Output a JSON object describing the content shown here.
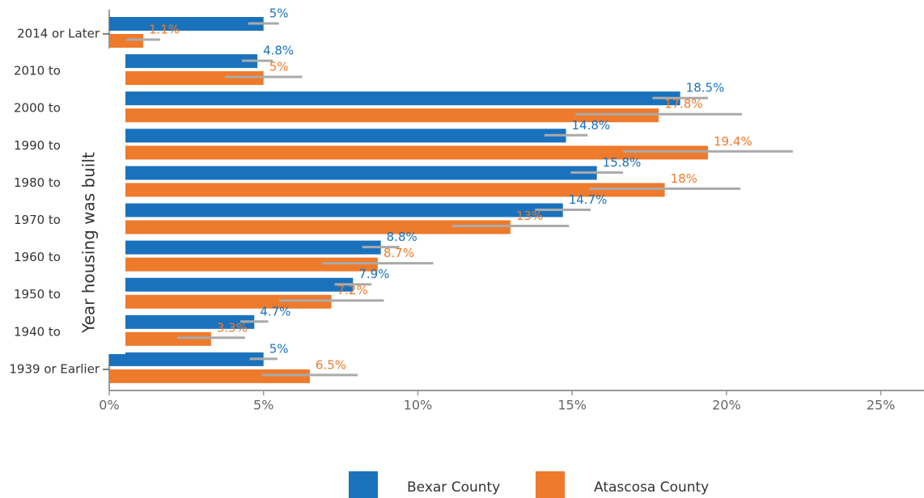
{
  "chart_data": {
    "type": "bar",
    "orientation": "horizontal",
    "y_axis_label": "Year housing was built",
    "categories": [
      "2014 or Later",
      "2010 to",
      "2000 to",
      "1990 to",
      "1980 to",
      "1970 to",
      "1960 to",
      "1950 to",
      "1940 to",
      "1939 or Earlier"
    ],
    "series": [
      {
        "name": "Bexar County",
        "color": "#1a72bd",
        "values": [
          5,
          4.8,
          18.5,
          14.8,
          15.8,
          14.7,
          8.8,
          7.9,
          4.7,
          5
        ],
        "value_labels": [
          "5%",
          "4.8%",
          "18.5%",
          "14.8%",
          "15.8%",
          "14.7%",
          "8.8%",
          "7.9%",
          "4.7%",
          "5%"
        ],
        "errors": [
          0.5,
          0.5,
          0.9,
          0.7,
          0.85,
          0.9,
          0.6,
          0.6,
          0.45,
          0.45
        ]
      },
      {
        "name": "Atascosa County",
        "color": "#ee7a2b",
        "values": [
          1.1,
          5,
          17.8,
          19.4,
          18,
          13,
          8.7,
          7.2,
          3.3,
          6.5
        ],
        "value_labels": [
          "1.1%",
          "5%",
          "17.8%",
          "19.4%",
          "18%",
          "13%",
          "8.7%",
          "7.2%",
          "3.3%",
          "6.5%"
        ],
        "errors": [
          0.55,
          1.25,
          2.7,
          2.75,
          2.45,
          1.9,
          1.8,
          1.7,
          1.1,
          1.55
        ]
      }
    ],
    "xlim": [
      0,
      26.4
    ],
    "xticks": [
      {
        "value": 0,
        "label": "0%"
      },
      {
        "value": 5,
        "label": "5%"
      },
      {
        "value": 10,
        "label": "10%"
      },
      {
        "value": 15,
        "label": "15%"
      },
      {
        "value": 20,
        "label": "20%"
      },
      {
        "value": 25,
        "label": "25%"
      }
    ],
    "legend": "bottom"
  }
}
